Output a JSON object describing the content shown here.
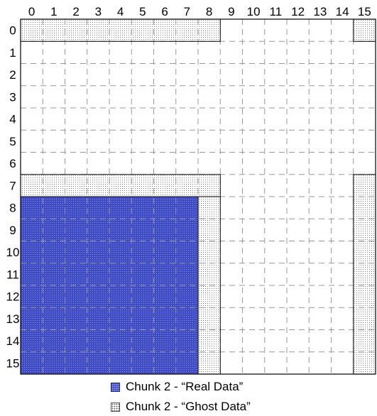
{
  "column_labels": [
    "0",
    "1",
    "2",
    "3",
    "4",
    "5",
    "6",
    "7",
    "8",
    "9",
    "10",
    "11",
    "12",
    "13",
    "14",
    "15"
  ],
  "row_labels": [
    "0",
    "1",
    "2",
    "3",
    "4",
    "5",
    "6",
    "7",
    "8",
    "9",
    "10",
    "11",
    "12",
    "13",
    "14",
    "15"
  ],
  "colors": {
    "real_fill": "#3f4bc4",
    "real_dot": "#8f96e6",
    "ghost_fill": "#ffffff",
    "ghost_dot": "#666666",
    "grid_dash": "#999999",
    "border": "#000000"
  },
  "regions": {
    "real_data": {
      "rows": [
        8,
        15
      ],
      "cols": [
        0,
        7
      ]
    },
    "ghost_data": [
      {
        "rows": [
          0,
          0
        ],
        "cols": [
          0,
          8
        ]
      },
      {
        "rows": [
          0,
          0
        ],
        "cols": [
          15,
          15
        ]
      },
      {
        "rows": [
          7,
          7
        ],
        "cols": [
          0,
          8
        ]
      },
      {
        "rows": [
          7,
          15
        ],
        "cols": [
          15,
          15
        ]
      },
      {
        "rows": [
          8,
          15
        ],
        "cols": [
          8,
          8
        ]
      }
    ]
  },
  "legend": {
    "real_label": "Chunk 2 - “Real Data”",
    "ghost_label": "Chunk 2 - “Ghost Data”"
  }
}
